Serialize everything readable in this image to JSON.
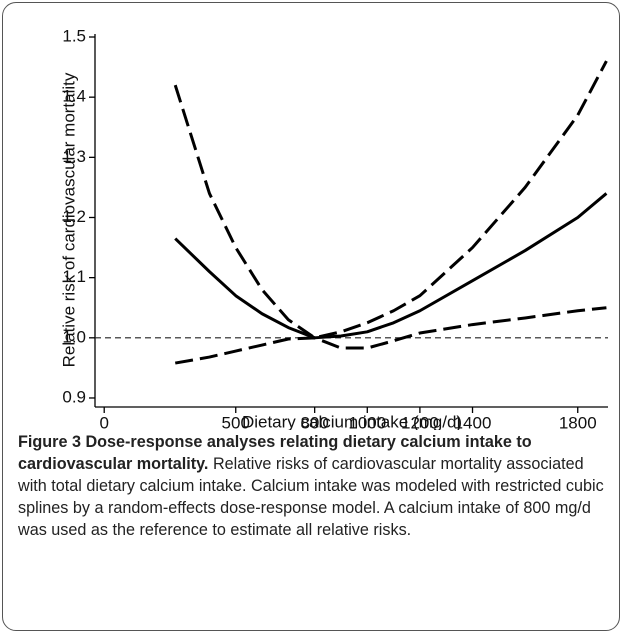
{
  "chart_data": {
    "type": "line",
    "xlabel": "Dietary calcium intake (mg/d)",
    "ylabel": "Relative risk of cardiovascular mortality",
    "xlim": [
      -35,
      1915
    ],
    "ylim": [
      0.885,
      1.505
    ],
    "xticks": [
      0,
      500,
      800,
      1000,
      1200,
      1400,
      1800
    ],
    "yticks": [
      0.9,
      {
        "value": 1,
        "label": "1.0"
      },
      1.1,
      1.2,
      1.3,
      1.4,
      1.5
    ],
    "reference_line": 1,
    "series": [
      {
        "color": "#000000",
        "style": "solid",
        "x": [
          270,
          400,
          500,
          600,
          700,
          800,
          900,
          1000,
          1100,
          1200,
          1400,
          1600,
          1800,
          1909
        ],
        "values": [
          1.165,
          1.11,
          1.07,
          1.04,
          1.017,
          1.0,
          1.003,
          1.01,
          1.025,
          1.045,
          1.095,
          1.145,
          1.2,
          1.24
        ]
      },
      {
        "color": "#000000",
        "style": "dashed",
        "x": [
          270,
          400,
          500,
          600,
          700,
          800,
          900,
          1000,
          1100,
          1200,
          1400,
          1600,
          1800,
          1909
        ],
        "values": [
          1.42,
          1.24,
          1.15,
          1.08,
          1.03,
          1.0,
          1.01,
          1.025,
          1.045,
          1.07,
          1.15,
          1.25,
          1.37,
          1.46
        ]
      },
      {
        "color": "#000000",
        "style": "dashed",
        "x": [
          270,
          400,
          500,
          600,
          700,
          800,
          900,
          1000,
          1100,
          1200,
          1400,
          1600,
          1800,
          1909
        ],
        "values": [
          0.958,
          0.968,
          0.978,
          0.988,
          0.998,
          1.0,
          0.983,
          0.983,
          0.995,
          1.008,
          1.022,
          1.033,
          1.045,
          1.05
        ]
      }
    ]
  },
  "caption": {
    "label": "Figure 3 Dose-response analyses relating dietary calcium intake to cardiovascular mortality.",
    "text": "Relative risks of cardiovascular mortality associated with total dietary calcium intake. Calcium intake was modeled with restricted cubic splines by a random-effects dose-response model. A calcium intake of 800 mg/d was used as the reference to estimate all relative risks."
  }
}
